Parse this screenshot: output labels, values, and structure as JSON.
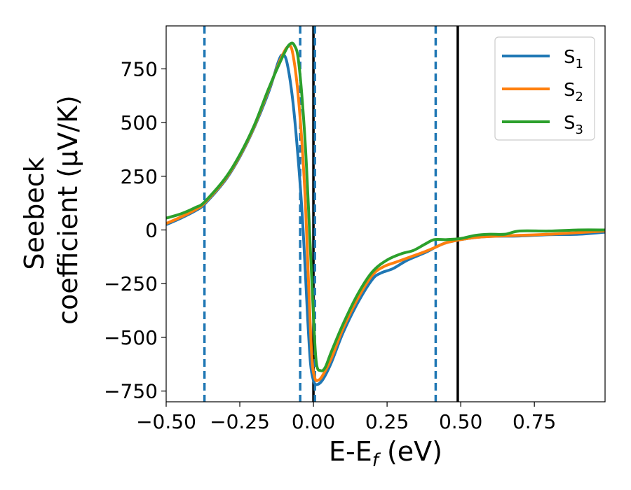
{
  "chart_data": {
    "type": "line",
    "xlabel_main": "E-E",
    "xlabel_sub": "f",
    "xlabel_unit": " (eV)",
    "ylabel_line1": "Seebeck",
    "ylabel_line2": "coefficient  (μV/K)",
    "xlim": [
      -0.5,
      0.99
    ],
    "ylim": [
      -800,
      950
    ],
    "xticks": [
      -0.5,
      -0.25,
      0.0,
      0.25,
      0.5,
      0.75
    ],
    "xtick_labels": [
      "−0.50",
      "−0.25",
      "0.00",
      "0.25",
      "0.50",
      "0.75"
    ],
    "yticks": [
      750,
      500,
      250,
      0,
      -250,
      -500,
      -750
    ],
    "ytick_labels": [
      "750",
      "500",
      "250",
      "0",
      "−250",
      "−500",
      "−750"
    ],
    "legend_position": "top-right",
    "dashed_vlines": [
      -0.37,
      -0.045,
      0.005,
      0.415
    ],
    "dashed_vline_color": "#1f77b4",
    "solid_vlines": [
      0.0,
      0.49
    ],
    "solid_vline_color": "#000000",
    "series": [
      {
        "name": "S",
        "subscript": "1",
        "color": "#1f77b4",
        "points": [
          [
            -0.5,
            25
          ],
          [
            -0.45,
            55
          ],
          [
            -0.4,
            90
          ],
          [
            -0.37,
            120
          ],
          [
            -0.3,
            230
          ],
          [
            -0.25,
            340
          ],
          [
            -0.2,
            480
          ],
          [
            -0.15,
            650
          ],
          [
            -0.12,
            780
          ],
          [
            -0.105,
            815
          ],
          [
            -0.09,
            780
          ],
          [
            -0.07,
            600
          ],
          [
            -0.05,
            300
          ],
          [
            -0.035,
            0
          ],
          [
            -0.02,
            -400
          ],
          [
            -0.01,
            -620
          ],
          [
            0.0,
            -700
          ],
          [
            0.01,
            -720
          ],
          [
            0.03,
            -700
          ],
          [
            0.06,
            -620
          ],
          [
            0.1,
            -480
          ],
          [
            0.15,
            -340
          ],
          [
            0.2,
            -230
          ],
          [
            0.23,
            -200
          ],
          [
            0.27,
            -180
          ],
          [
            0.32,
            -140
          ],
          [
            0.38,
            -105
          ],
          [
            0.415,
            -80
          ],
          [
            0.45,
            -60
          ],
          [
            0.5,
            -45
          ],
          [
            0.55,
            -35
          ],
          [
            0.6,
            -30
          ],
          [
            0.7,
            -28
          ],
          [
            0.8,
            -22
          ],
          [
            0.9,
            -20
          ],
          [
            0.99,
            -10
          ]
        ]
      },
      {
        "name": "S",
        "subscript": "2",
        "color": "#ff7f0e",
        "points": [
          [
            -0.5,
            30
          ],
          [
            -0.45,
            60
          ],
          [
            -0.4,
            95
          ],
          [
            -0.37,
            125
          ],
          [
            -0.3,
            235
          ],
          [
            -0.25,
            345
          ],
          [
            -0.2,
            485
          ],
          [
            -0.15,
            660
          ],
          [
            -0.11,
            800
          ],
          [
            -0.085,
            855
          ],
          [
            -0.07,
            820
          ],
          [
            -0.05,
            600
          ],
          [
            -0.03,
            200
          ],
          [
            -0.015,
            -300
          ],
          [
            -0.005,
            -600
          ],
          [
            0.005,
            -690
          ],
          [
            0.015,
            -700
          ],
          [
            0.03,
            -680
          ],
          [
            0.06,
            -600
          ],
          [
            0.1,
            -460
          ],
          [
            0.15,
            -320
          ],
          [
            0.2,
            -210
          ],
          [
            0.24,
            -170
          ],
          [
            0.28,
            -150
          ],
          [
            0.33,
            -125
          ],
          [
            0.38,
            -100
          ],
          [
            0.415,
            -80
          ],
          [
            0.45,
            -60
          ],
          [
            0.5,
            -45
          ],
          [
            0.55,
            -35
          ],
          [
            0.6,
            -30
          ],
          [
            0.7,
            -25
          ],
          [
            0.8,
            -20
          ],
          [
            0.9,
            -12
          ],
          [
            0.99,
            -5
          ]
        ]
      },
      {
        "name": "S",
        "subscript": "3",
        "color": "#2ca02c",
        "points": [
          [
            -0.5,
            55
          ],
          [
            -0.45,
            75
          ],
          [
            -0.4,
            105
          ],
          [
            -0.37,
            130
          ],
          [
            -0.3,
            240
          ],
          [
            -0.25,
            350
          ],
          [
            -0.2,
            490
          ],
          [
            -0.15,
            665
          ],
          [
            -0.1,
            820
          ],
          [
            -0.08,
            865
          ],
          [
            -0.065,
            860
          ],
          [
            -0.05,
            780
          ],
          [
            -0.03,
            450
          ],
          [
            -0.015,
            50
          ],
          [
            0.0,
            -400
          ],
          [
            0.01,
            -620
          ],
          [
            0.025,
            -655
          ],
          [
            0.04,
            -640
          ],
          [
            0.06,
            -570
          ],
          [
            0.1,
            -440
          ],
          [
            0.15,
            -300
          ],
          [
            0.2,
            -195
          ],
          [
            0.25,
            -140
          ],
          [
            0.3,
            -110
          ],
          [
            0.34,
            -95
          ],
          [
            0.38,
            -65
          ],
          [
            0.41,
            -45
          ],
          [
            0.45,
            -45
          ],
          [
            0.5,
            -40
          ],
          [
            0.55,
            -25
          ],
          [
            0.6,
            -20
          ],
          [
            0.65,
            -20
          ],
          [
            0.7,
            -5
          ],
          [
            0.8,
            -5
          ],
          [
            0.9,
            0
          ],
          [
            0.99,
            0
          ]
        ]
      }
    ]
  }
}
